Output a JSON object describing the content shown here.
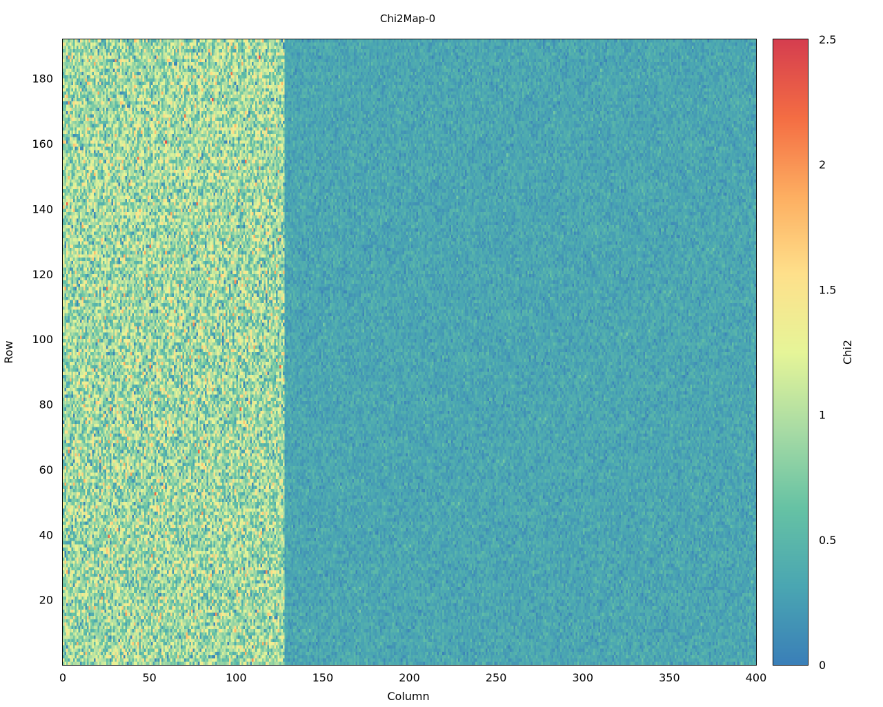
{
  "chart_data": {
    "type": "heatmap",
    "title": "Chi2Map-0",
    "xlabel": "Column",
    "ylabel": "Row",
    "colorbar_label": "Chi2",
    "xlim": [
      0,
      400
    ],
    "ylim": [
      0,
      192
    ],
    "clim": [
      0,
      2.5
    ],
    "n_columns": 400,
    "n_rows": 192,
    "x_ticks": [
      0,
      50,
      100,
      150,
      200,
      250,
      300,
      350,
      400
    ],
    "y_ticks": [
      20,
      40,
      60,
      80,
      100,
      120,
      140,
      160,
      180
    ],
    "colorbar_ticks": [
      "0",
      "0.5",
      "1",
      "1.5",
      "2",
      "2.5"
    ],
    "colorbar_tick_values": [
      0,
      0.5,
      1,
      1.5,
      2,
      2.5
    ],
    "regions": [
      {
        "columns": [
          0,
          127
        ],
        "typical_chi2": 0.9,
        "spread": 0.35
      },
      {
        "columns": [
          128,
          400
        ],
        "typical_chi2": 0.32,
        "spread": 0.1
      }
    ],
    "colormap": [
      "#3a7fb8",
      "#4aa6b2",
      "#66c2a4",
      "#a8dba4",
      "#e6f598",
      "#fee08b",
      "#fdae61",
      "#f46d43",
      "#d53e4f"
    ]
  }
}
